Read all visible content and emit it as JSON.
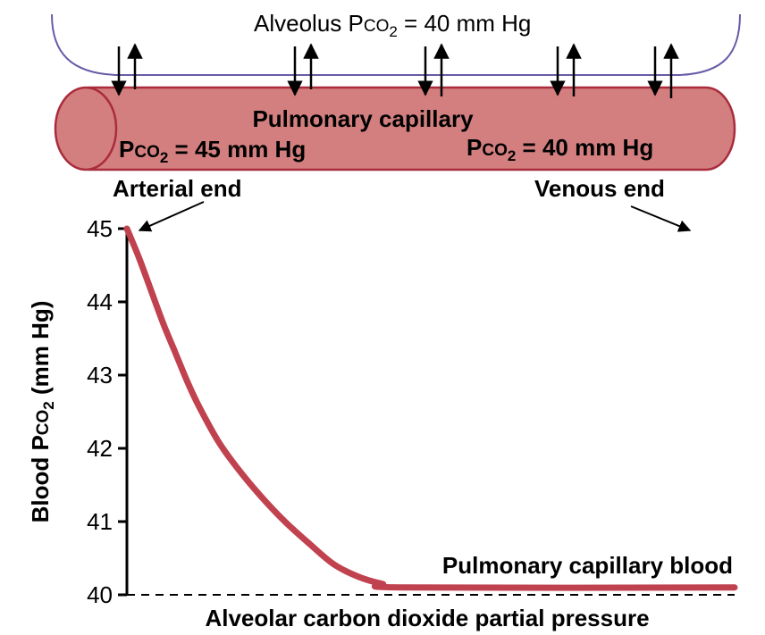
{
  "header": {
    "alveolus_prefix": "Alveolus P",
    "alveolus_co": "CO",
    "alveolus_sub": "2",
    "alveolus_suffix": " = 40 mm Hg"
  },
  "capillary": {
    "label": "Pulmonary capillary",
    "pco2_left": {
      "prefix": "P",
      "co": "CO",
      "sub": "2",
      "suffix": " = 45 mm Hg"
    },
    "pco2_right": {
      "prefix": "P",
      "co": "CO",
      "sub": "2",
      "suffix": " = 40 mm Hg"
    },
    "arterial_end": "Arterial end",
    "venous_end": "Venous end"
  },
  "chart_data": {
    "type": "line",
    "ylabel_prefix": "Blood P",
    "ylabel_co": "CO",
    "ylabel_sub": "2",
    "ylabel_suffix": " (mm Hg)",
    "yticks": [
      "40",
      "41",
      "42",
      "43",
      "44",
      "45"
    ],
    "ylim": [
      40,
      45
    ],
    "xlim": [
      0,
      1
    ],
    "series": [
      {
        "name": "Pulmonary capillary blood",
        "color": "#c0424f",
        "x": [
          0,
          0.02,
          0.04,
          0.06,
          0.08,
          0.1,
          0.12,
          0.15,
          0.18,
          0.22,
          0.26,
          0.3,
          0.34,
          0.38,
          0.42,
          0.46,
          1.0
        ],
        "y": [
          45.0,
          44.6,
          44.15,
          43.7,
          43.3,
          42.9,
          42.55,
          42.1,
          41.75,
          41.35,
          41.0,
          40.7,
          40.42,
          40.25,
          40.15,
          40.1,
          40.1
        ]
      }
    ],
    "reference_line": {
      "label": "Alveolar carbon dioxide partial pressure",
      "y": 40,
      "style": "dashed"
    },
    "series_label": "Pulmonary capillary blood"
  }
}
